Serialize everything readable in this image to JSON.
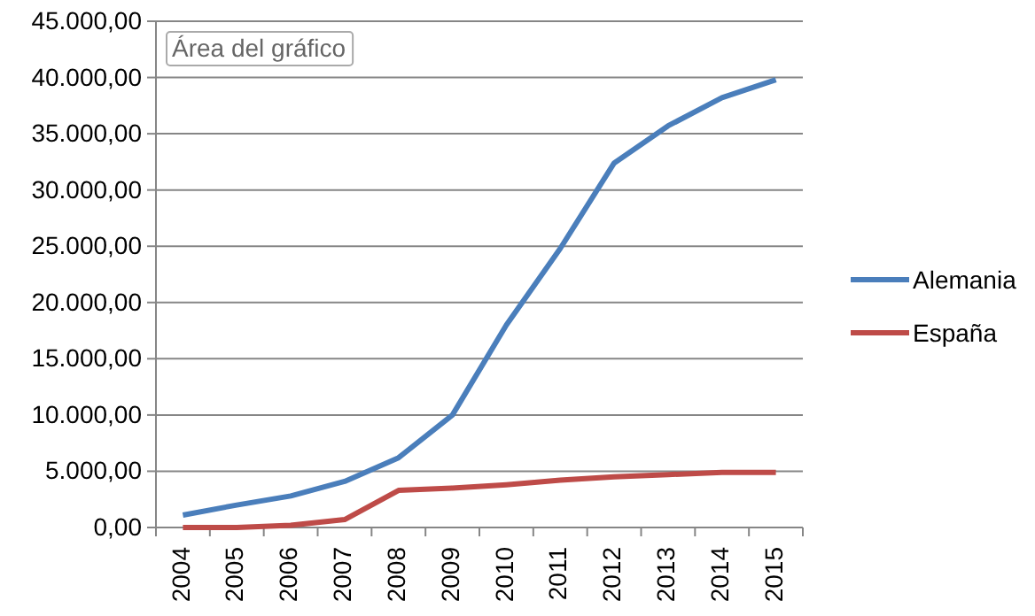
{
  "chart_data": {
    "type": "line",
    "categories": [
      "2004",
      "2005",
      "2006",
      "2007",
      "2008",
      "2009",
      "2010",
      "2011",
      "2012",
      "2013",
      "2014",
      "2015"
    ],
    "series": [
      {
        "name": "Alemania",
        "color": "#4a7ebb",
        "values": [
          1100,
          2000,
          2800,
          4100,
          6200,
          10000,
          18000,
          24800,
          32400,
          35700,
          38200,
          39800
        ]
      },
      {
        "name": "España",
        "color": "#be4b48",
        "values": [
          0,
          0,
          200,
          700,
          3300,
          3500,
          3800,
          4200,
          4500,
          4700,
          4900,
          4900
        ]
      }
    ],
    "ylim": [
      0,
      45000
    ],
    "yticks": [
      {
        "value": 0,
        "label": "0,00"
      },
      {
        "value": 5000,
        "label": "5.000,00"
      },
      {
        "value": 10000,
        "label": "10.000,00"
      },
      {
        "value": 15000,
        "label": "15.000,00"
      },
      {
        "value": 20000,
        "label": "20.000,00"
      },
      {
        "value": 25000,
        "label": "25.000,00"
      },
      {
        "value": 30000,
        "label": "30.000,00"
      },
      {
        "value": 35000,
        "label": "35.000,00"
      },
      {
        "value": 40000,
        "label": "40.000,00"
      },
      {
        "value": 45000,
        "label": "45.000,00"
      }
    ],
    "grid": "y",
    "legend": "right",
    "marker": "none",
    "line_style": "solid",
    "annotations": [
      "Área del gráfico"
    ]
  }
}
